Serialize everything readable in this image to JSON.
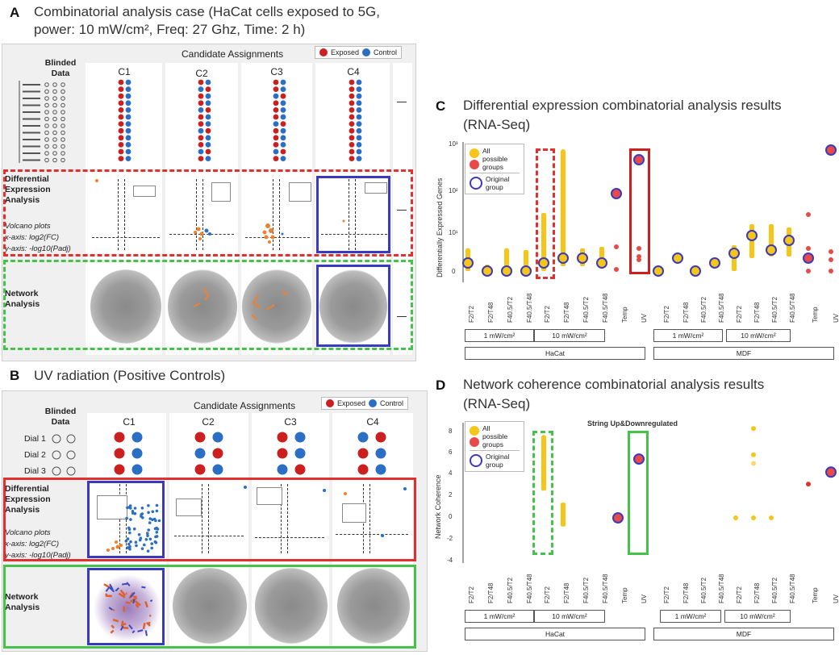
{
  "colors": {
    "exposed": "#cc1f1f",
    "control": "#2a6fc4",
    "red_box": "#e03030",
    "green_box": "#44c24a",
    "blue_box": "#3a3ac0",
    "yellow": "#f5c518",
    "orange": "#f08030"
  },
  "panel_a": {
    "letter": "A",
    "title_line1": "Combinatorial analysis case (HaCat cells exposed to 5G,",
    "title_line2": "power: 10 mW/cm², Freq: 27 Ghz, Time: 2 h)",
    "blinded_label": "Blinded Data",
    "candidate_label": "Candidate Assignments",
    "legend_exposed": "Exposed",
    "legend_control": "Control",
    "columns": [
      "C1",
      "C2",
      "C3",
      "C4"
    ],
    "row_de": "Differential Expression Analysis",
    "row_volcano1": "Volcano plots",
    "row_volcano2": "x-axis: log2(FC)",
    "row_volcano3": "y-axis: -log10(Padj)",
    "row_network": "Network Analysis"
  },
  "panel_b": {
    "letter": "B",
    "title": "UV radiation (Positive Controls)",
    "blinded_label": "Blinded Data",
    "candidate_label": "Candidate Assignments",
    "legend_exposed": "Exposed",
    "legend_control": "Control",
    "columns": [
      "C1",
      "C2",
      "C3",
      "C4"
    ],
    "dials": [
      "Dial 1",
      "Dial 2",
      "Dial 3"
    ],
    "row_de": "Differential Expression Analysis",
    "row_volcano1": "Volcano plots",
    "row_volcano2": "x-axis: log2(FC)",
    "row_volcano3": "y-axis: -log10(Padj)",
    "row_network": "Network Analysis"
  },
  "panel_c": {
    "letter": "C",
    "title_line1": "Differential expression combinatorial analysis results",
    "title_line2": "(RNA-Seq)",
    "ylabel": "Differentially Expressed Genes",
    "legend_all": "All possible groups",
    "legend_original": "Original group",
    "y_ticks": [
      "10³",
      "10²",
      "10¹",
      "0"
    ],
    "x_labels": [
      "F2/T2",
      "F2/T48",
      "F40.5/T2",
      "F40.5/T48",
      "F2/T2",
      "F2/T48",
      "F40.5/T2",
      "F40.5/T48",
      "Temp",
      "UV",
      "F2/T2",
      "F2/T48",
      "F40.5/T2",
      "F40.5/T48",
      "F2/T2",
      "F2/T48",
      "F40.5/T2",
      "F40.5/T48",
      "Temp",
      "UV"
    ],
    "power_left_1": "1 mW/cm²",
    "power_left_2": "10 mW/cm²",
    "power_right_1": "1 mW/cm²",
    "power_right_2": "10 mW/cm²",
    "cell_left": "HaCat",
    "cell_right": "MDF"
  },
  "panel_d": {
    "letter": "D",
    "title_line1": "Network coherence combinatorial analysis results",
    "title_line2": "(RNA-Seq)",
    "ylabel": "Network Coherence",
    "legend_all": "All possible groups",
    "legend_original": "Original group",
    "annotation": "String Up&Downregulated",
    "y_ticks": [
      "8",
      "6",
      "4",
      "2",
      "0",
      "-2",
      "-4"
    ],
    "x_labels": [
      "F2/T2",
      "F2/T48",
      "F40.5/T2",
      "F40.5/T48",
      "F2/T2",
      "F2/T48",
      "F40.5/T2",
      "F40.5/T48",
      "Temp",
      "UV",
      "F2/T2",
      "F2/T48",
      "F40.5/T2",
      "F40.5/T48",
      "F2/T2",
      "F2/T48",
      "F40.5/T2",
      "F40.5/T48",
      "Temp",
      "UV"
    ],
    "power_left_1": "1 mW/cm²",
    "power_left_2": "10 mW/cm²",
    "power_right_1": "1 mW/cm²",
    "power_right_2": "10 mW/cm²",
    "cell_left": "HaCat",
    "cell_right": "MDF"
  }
}
